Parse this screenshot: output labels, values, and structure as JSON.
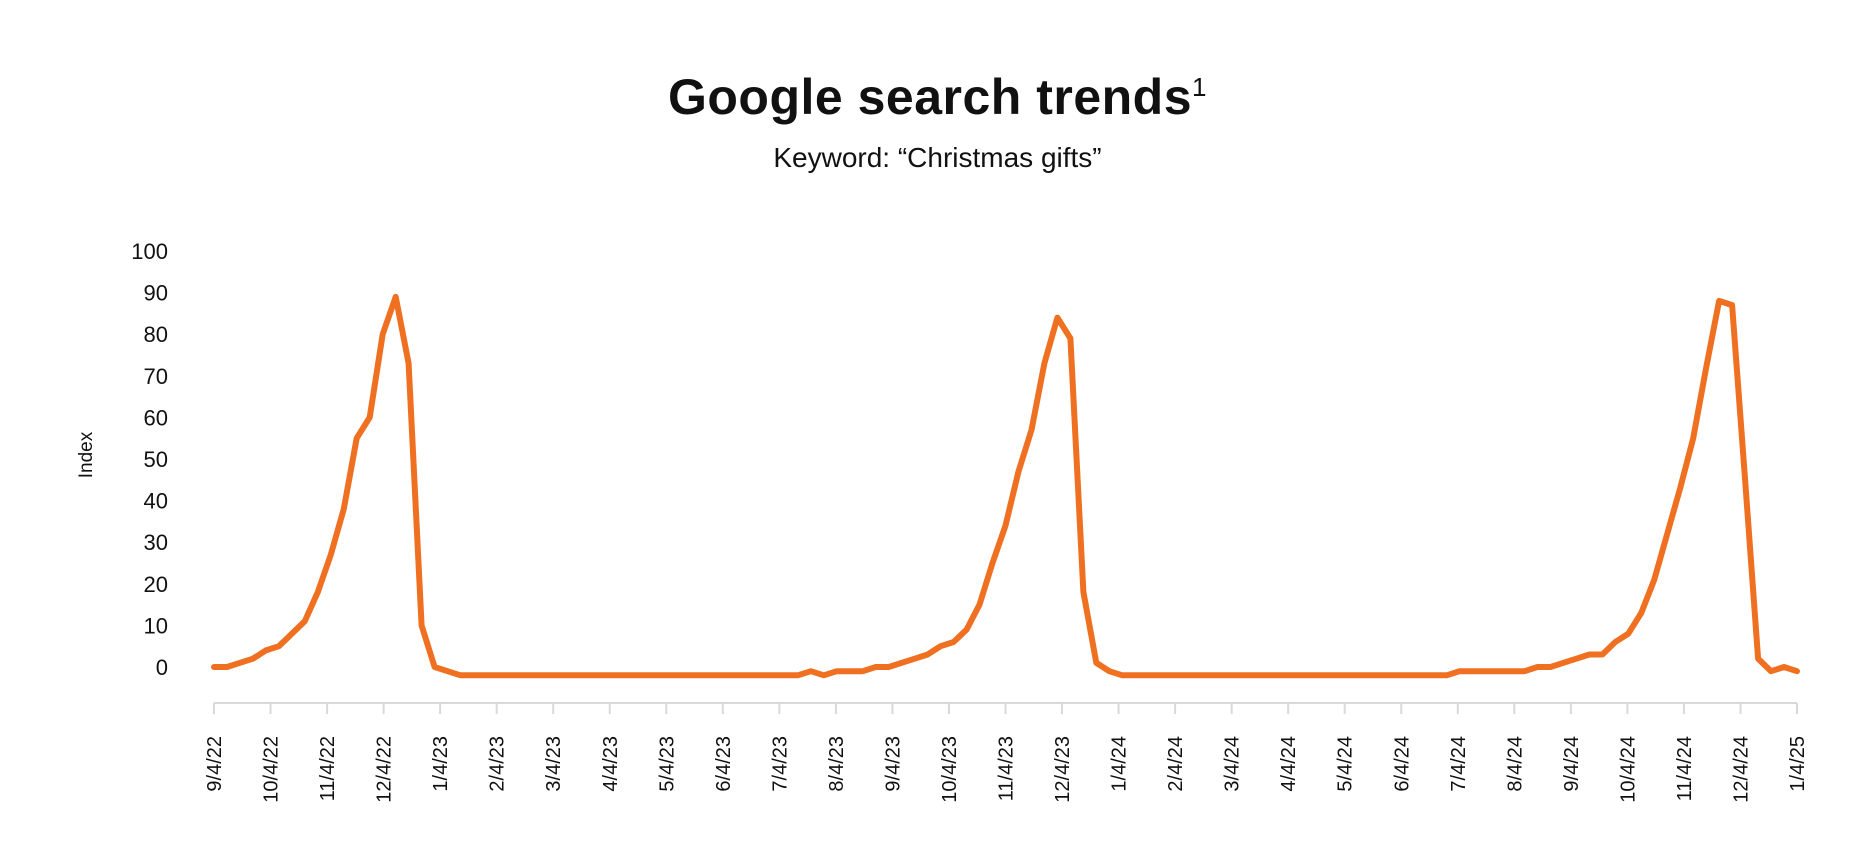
{
  "chart_data": {
    "type": "line",
    "title": "Google search trends",
    "title_footnote": "1",
    "subtitle": "Keyword: “Christmas gifts”",
    "xlabel": "",
    "ylabel": "Index",
    "ylim": [
      -10,
      100
    ],
    "yticks": [
      0,
      10,
      20,
      30,
      40,
      50,
      60,
      70,
      80,
      90,
      100
    ],
    "x_unit": "weeks since 9/4/22",
    "xlim": [
      0,
      122
    ],
    "xtick_labels": [
      "9/4/22",
      "10/4/22",
      "11/4/22",
      "12/4/22",
      "1/4/23",
      "2/4/23",
      "3/4/23",
      "4/4/23",
      "5/4/23",
      "6/4/23",
      "7/4/23",
      "8/4/23",
      "9/4/23",
      "10/4/23",
      "11/4/23",
      "12/4/23",
      "1/4/24",
      "2/4/24",
      "3/4/24",
      "4/4/24",
      "5/4/24",
      "6/4/24",
      "7/4/24",
      "8/4/24",
      "9/4/24",
      "10/4/24",
      "11/4/24",
      "12/4/24",
      "1/4/25"
    ],
    "grid": false,
    "series": [
      {
        "name": "Christmas gifts",
        "color": "#F07022",
        "values": [
          0,
          0,
          1,
          2,
          4,
          5,
          8,
          11,
          18,
          27,
          38,
          55,
          60,
          80,
          89,
          73,
          10,
          0,
          -1,
          -2,
          -2,
          -2,
          -2,
          -2,
          -2,
          -2,
          -2,
          -2,
          -2,
          -2,
          -2,
          -2,
          -2,
          -2,
          -2,
          -2,
          -2,
          -2,
          -2,
          -2,
          -2,
          -2,
          -2,
          -2,
          -2,
          -2,
          -1,
          -2,
          -1,
          -1,
          -1,
          0,
          0,
          1,
          2,
          3,
          5,
          6,
          9,
          15,
          25,
          34,
          47,
          57,
          73,
          84,
          79,
          18,
          1,
          -1,
          -2,
          -2,
          -2,
          -2,
          -2,
          -2,
          -2,
          -2,
          -2,
          -2,
          -2,
          -2,
          -2,
          -2,
          -2,
          -2,
          -2,
          -2,
          -2,
          -2,
          -2,
          -2,
          -2,
          -2,
          -2,
          -2,
          -1,
          -1,
          -1,
          -1,
          -1,
          -1,
          0,
          0,
          1,
          2,
          3,
          3,
          6,
          8,
          13,
          21,
          32,
          43,
          55,
          72,
          88,
          87,
          45,
          2,
          -1,
          0,
          -1
        ]
      }
    ]
  }
}
